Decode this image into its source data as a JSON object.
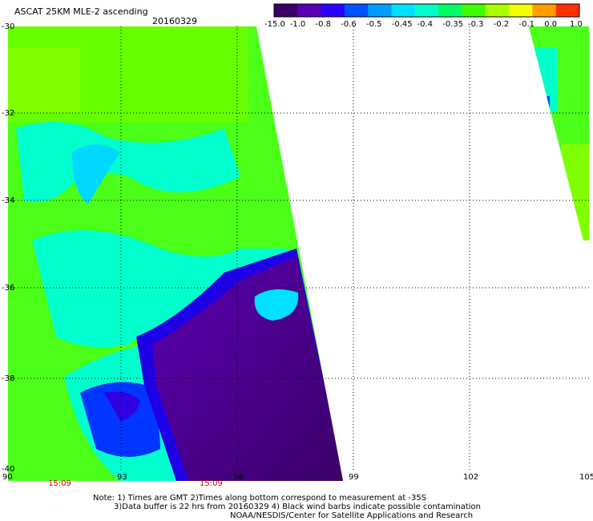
{
  "header": {
    "title": "ASCAT 25KM MLE-2 ascending",
    "date": "20160329"
  },
  "colorbar": {
    "tick_labels": [
      "-15.0",
      "-1.0",
      "-0.8",
      "-0.6",
      "-0.5",
      "-0.45",
      "-0.4",
      "-0.35",
      "-0.3",
      "-0.2",
      "-0.1",
      "0.0",
      "1.0"
    ],
    "colors": [
      "#3b0066",
      "#5a00b4",
      "#2a00ff",
      "#0050ff",
      "#009cff",
      "#00e0ff",
      "#00ffcc",
      "#00ff66",
      "#40ff00",
      "#a8ff00",
      "#f2ff00",
      "#ff9c00",
      "#ff3000"
    ]
  },
  "map": {
    "lat_labels": [
      "-30",
      "-32",
      "-34",
      "-36",
      "-38",
      "-40"
    ],
    "lon_labels": [
      "90",
      "93",
      "96",
      "99",
      "102",
      "105"
    ],
    "lon_range": [
      90,
      105
    ],
    "lat_range": [
      -30,
      -40
    ],
    "gridlines": true
  },
  "times": [
    "15:09",
    "15:09"
  ],
  "notes": [
    "Note: 1) Times are GMT 2)Times along bottom correspond to measurement at -35S",
    "3)Data buffer is 22 hrs from 20160329 4) Black wind barbs indicate possible contamination",
    "NOAA/NESDIS/Center for Satellite Applications and Research"
  ]
}
